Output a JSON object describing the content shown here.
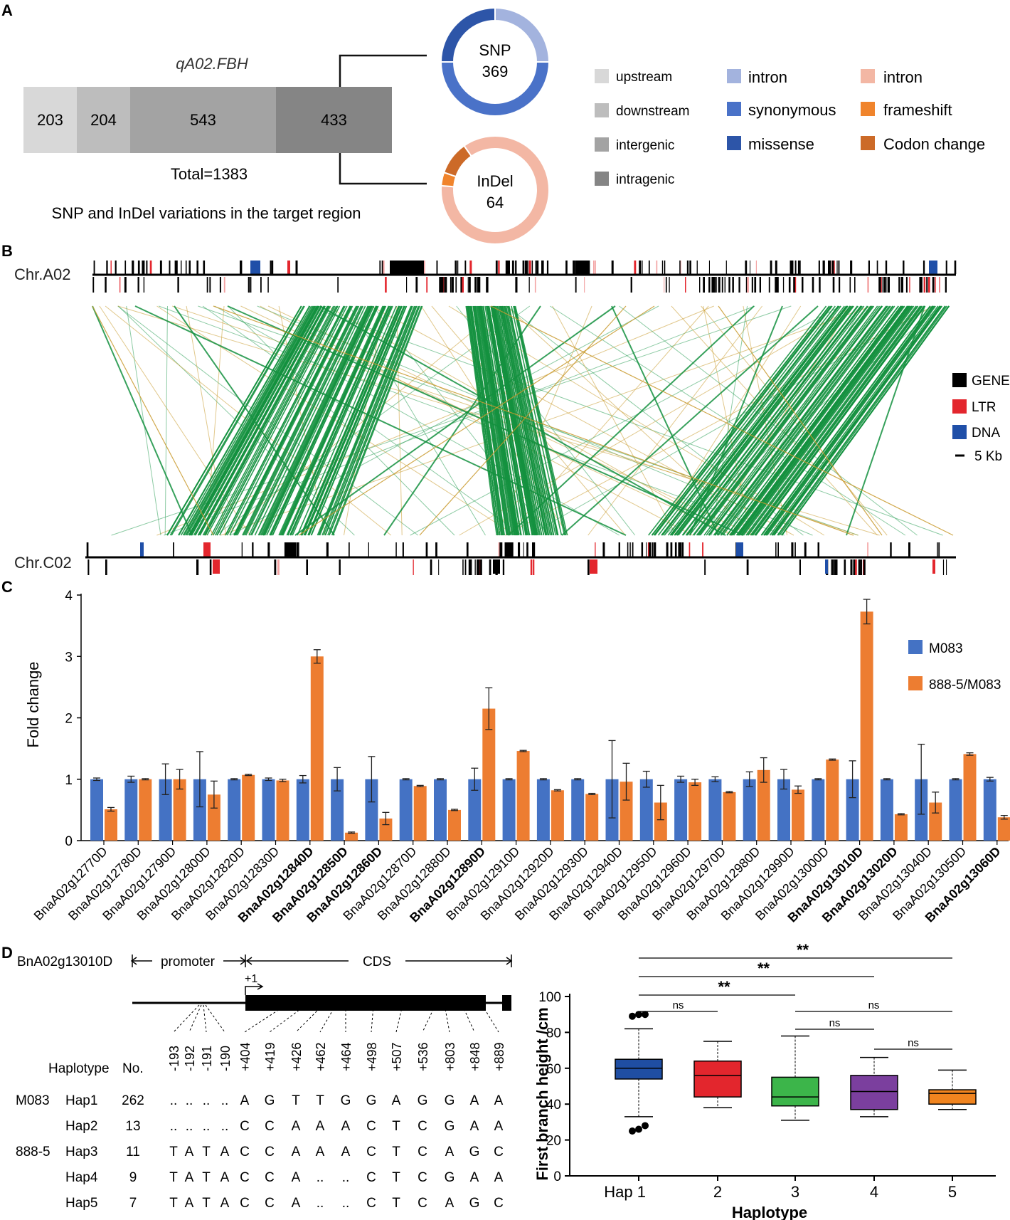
{
  "panel_labels": [
    "A",
    "B",
    "C",
    "D"
  ],
  "panelA": {
    "qtl_name": "qA02.FBH",
    "segments": [
      {
        "value": 203,
        "label": "203",
        "color": "#d8d8d8"
      },
      {
        "value": 204,
        "label": "204",
        "color": "#bdbdbd"
      },
      {
        "value": 543,
        "label": "543",
        "color": "#a3a3a3"
      },
      {
        "value": 433,
        "label": "433",
        "color": "#858585"
      }
    ],
    "total_label": "Total=1383",
    "caption": "SNP and InDel variations in the target region",
    "snp_donut": {
      "title": "SNP",
      "count": "369",
      "slices": [
        {
          "name": "intron",
          "value": 0.25,
          "color": "#a3b3de"
        },
        {
          "name": "synonymous",
          "value": 0.5,
          "color": "#4a72c8"
        },
        {
          "name": "missense",
          "value": 0.25,
          "color": "#2d55a8"
        }
      ]
    },
    "indel_donut": {
      "title": "InDel",
      "count": "64",
      "slices": [
        {
          "name": "intron",
          "value": 0.86,
          "color": "#f3b7a4"
        },
        {
          "name": "frameshift",
          "value": 0.04,
          "color": "#f0842c"
        },
        {
          "name": "Codon change",
          "value": 0.1,
          "color": "#cc6a28"
        }
      ]
    },
    "legend_gray": [
      {
        "label": "upstream",
        "color": "#d8d8d8"
      },
      {
        "label": "downstream",
        "color": "#bdbdbd"
      },
      {
        "label": "intergenic",
        "color": "#a3a3a3"
      },
      {
        "label": "intragenic",
        "color": "#858585"
      }
    ],
    "legend_snp": [
      {
        "label": "intron",
        "color": "#a3b3de"
      },
      {
        "label": "synonymous",
        "color": "#4a72c8"
      },
      {
        "label": "missense",
        "color": "#2d55a8"
      }
    ],
    "legend_indel": [
      {
        "label": "intron",
        "color": "#f3b7a4"
      },
      {
        "label": "frameshift",
        "color": "#f0842c"
      },
      {
        "label": "Codon change",
        "color": "#cc6a28"
      }
    ]
  },
  "panelB": {
    "chr_top": "Chr.A02",
    "chr_bottom": "Chr.C02",
    "legend": [
      {
        "label": "GENE",
        "color": "#000000"
      },
      {
        "label": "LTR",
        "color": "#e3262d"
      },
      {
        "label": "DNA",
        "color": "#1f4fa8"
      }
    ],
    "scale_label": "5 Kb"
  },
  "chart_data": {
    "type": "bar",
    "ylabel": "Fold change",
    "ylim": [
      0,
      4
    ],
    "yticks": [
      0,
      1,
      2,
      3,
      4
    ],
    "categories": [
      "BnaA02g12770D",
      "BnaA02g12780D",
      "BnaA02g12790D",
      "BnaA02g12800D",
      "BnaA02g12820D",
      "BnaA02g12830D",
      "BnaA02g12840D",
      "BnaA02g12850D",
      "BnaA02g12860D",
      "BnaA02g12870D",
      "BnaA02g12880D",
      "BnaA02g12890D",
      "BnaA02g12910D",
      "BnaA02g12920D",
      "BnaA02g12930D",
      "BnaA02g12940D",
      "BnaA02g12950D",
      "BnaA02g12960D",
      "BnaA02g12970D",
      "BnaA02g12980D",
      "BnaA02g12990D",
      "BnaA02g13000D",
      "BnaA02g13010D",
      "BnaA02g13020D",
      "BnaA02g13040D",
      "BnaA02g13050D",
      "BnaA02g13060D"
    ],
    "bold_categories": [
      "BnaA02g12840D",
      "BnaA02g12850D",
      "BnaA02g12860D",
      "BnaA02g12890D",
      "BnaA02g13010D",
      "BnaA02g13020D",
      "BnaA02g13060D"
    ],
    "series": [
      {
        "name": "M083",
        "color": "#4472c4",
        "values": [
          1,
          1,
          1,
          1,
          1,
          1,
          1,
          1,
          1,
          1,
          1,
          1,
          1,
          1,
          1,
          1,
          1,
          1,
          1,
          1,
          1,
          1,
          1,
          1,
          1,
          1,
          1
        ],
        "errors": [
          0.02,
          0.05,
          0.25,
          0.45,
          0.01,
          0.02,
          0.06,
          0.19,
          0.37,
          0.01,
          0.01,
          0.18,
          0.01,
          0.01,
          0.01,
          0.63,
          0.13,
          0.05,
          0.04,
          0.12,
          0.16,
          0.01,
          0.3,
          0.01,
          0.57,
          0.01,
          0.03
        ]
      },
      {
        "name": "888-5/M083",
        "color": "#ed7d31",
        "values": [
          0.51,
          1.0,
          1.0,
          0.75,
          1.07,
          0.98,
          3.0,
          0.13,
          0.36,
          0.89,
          0.5,
          2.15,
          1.46,
          0.82,
          0.76,
          0.96,
          0.62,
          0.95,
          0.79,
          1.15,
          0.83,
          1.32,
          3.73,
          0.43,
          0.62,
          1.41,
          0.38
        ],
        "errors": [
          0.03,
          0.01,
          0.16,
          0.22,
          0.01,
          0.02,
          0.11,
          0.01,
          0.1,
          0.01,
          0.01,
          0.34,
          0.01,
          0.01,
          0.01,
          0.3,
          0.28,
          0.05,
          0.01,
          0.2,
          0.06,
          0.01,
          0.2,
          0.01,
          0.17,
          0.02,
          0.03
        ]
      }
    ]
  },
  "panelD": {
    "gene": "BnA02g13010D",
    "promoter_label": "promoter",
    "cds_label": "CDS",
    "tss_label": "+1",
    "haplotype_header": "Haplotype",
    "no_header": "No.",
    "positions": [
      "-193",
      "-192",
      "-191",
      "-190",
      "+404",
      "+419",
      "+426",
      "+462",
      "+464",
      "+498",
      "+507",
      "+536",
      "+803",
      "+848",
      "+889"
    ],
    "haplotypes": [
      {
        "line": "M083",
        "name": "Hap1",
        "count": "262",
        "alleles": [
          "..",
          "..",
          "..",
          "..",
          "A",
          "G",
          "T",
          "T",
          "G",
          "G",
          "A",
          "G",
          "G",
          "A",
          "A"
        ]
      },
      {
        "line": "",
        "name": "Hap2",
        "count": "13",
        "alleles": [
          "..",
          "..",
          "..",
          "..",
          "C",
          "C",
          "A",
          "A",
          "A",
          "C",
          "T",
          "C",
          "G",
          "A",
          "A"
        ]
      },
      {
        "line": "888-5",
        "name": "Hap3",
        "count": "11",
        "alleles": [
          "T",
          "A",
          "T",
          "A",
          "C",
          "C",
          "A",
          "A",
          "A",
          "C",
          "T",
          "C",
          "A",
          "G",
          "C"
        ]
      },
      {
        "line": "",
        "name": "Hap4",
        "count": "9",
        "alleles": [
          "T",
          "A",
          "T",
          "A",
          "C",
          "C",
          "A",
          "..",
          "..",
          "C",
          "T",
          "C",
          "G",
          "A",
          "A"
        ]
      },
      {
        "line": "",
        "name": "Hap5",
        "count": "7",
        "alleles": [
          "T",
          "A",
          "T",
          "A",
          "C",
          "C",
          "A",
          "..",
          "..",
          "C",
          "T",
          "C",
          "A",
          "G",
          "C"
        ]
      }
    ],
    "boxplot": {
      "type": "box",
      "ylabel": "First branch height /cm",
      "xlabel": "Haplotype",
      "ylim": [
        0,
        100
      ],
      "yticks": [
        0,
        20,
        40,
        60,
        80,
        100
      ],
      "categories": [
        "Hap 1",
        "2",
        "3",
        "4",
        "5"
      ],
      "boxes": [
        {
          "min": 33,
          "q1": 54,
          "median": 60,
          "q3": 65,
          "max": 82,
          "outliers": [
            89,
            90,
            90,
            25,
            26,
            28
          ],
          "color": "#1f4ea3"
        },
        {
          "min": 38,
          "q1": 44,
          "median": 56,
          "q3": 64,
          "max": 75,
          "outliers": [],
          "color": "#e3262d"
        },
        {
          "min": 31,
          "q1": 39,
          "median": 44,
          "q3": 55,
          "max": 78,
          "outliers": [],
          "color": "#3cb54a"
        },
        {
          "min": 33,
          "q1": 37,
          "median": 47,
          "q3": 56,
          "max": 66,
          "outliers": [],
          "color": "#7b3f9e"
        },
        {
          "min": 37,
          "q1": 40,
          "median": 46,
          "q3": 48,
          "max": 59,
          "outliers": [],
          "color": "#f0841f"
        }
      ],
      "comparisons": [
        {
          "from": 0,
          "to": 4,
          "label": "**"
        },
        {
          "from": 0,
          "to": 3,
          "label": "**"
        },
        {
          "from": 0,
          "to": 2,
          "label": "**"
        },
        {
          "from": 0,
          "to": 1,
          "label": "ns"
        },
        {
          "from": 2,
          "to": 4,
          "label": "ns"
        },
        {
          "from": 2,
          "to": 3,
          "label": "ns"
        },
        {
          "from": 3,
          "to": 4,
          "label": "ns"
        }
      ]
    }
  }
}
